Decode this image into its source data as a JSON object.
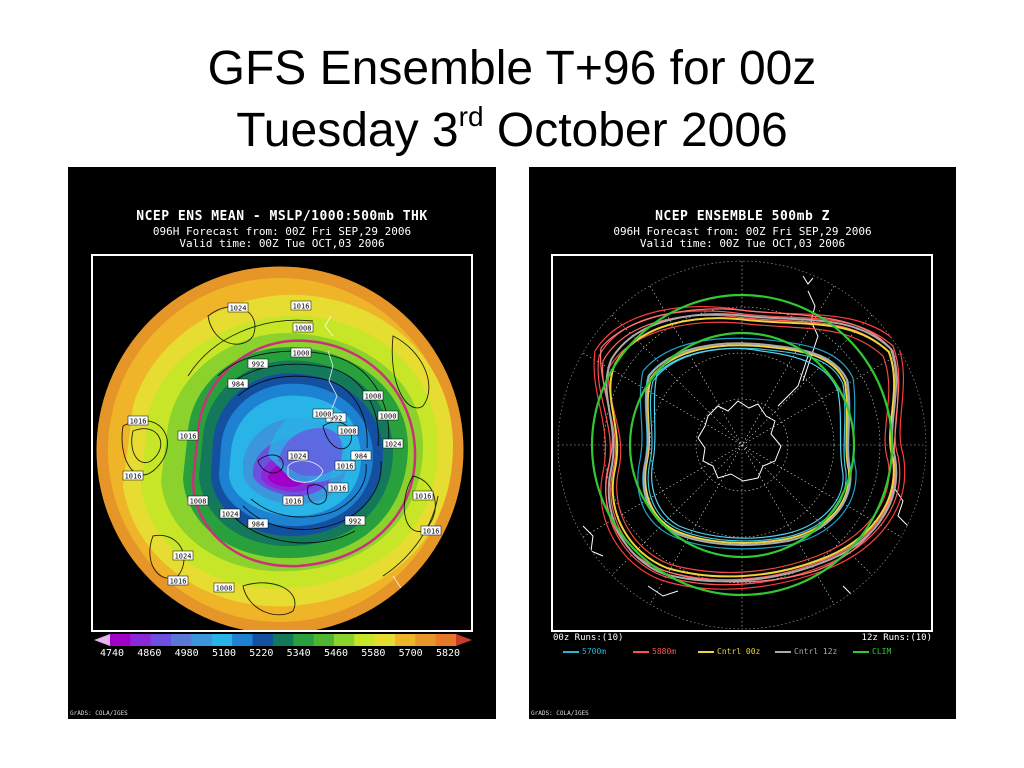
{
  "slide": {
    "title_line1": "GFS Ensemble T+96 for 00z",
    "title_line2_pre": "Tuesday 3",
    "title_line2_sup": "rd",
    "title_line2_post": " October 2006"
  },
  "left_panel": {
    "header_line1": "NCEP ENS MEAN - MSLP/1000:500mb THK",
    "header_line2": "096H Forecast from: 00Z Fri SEP,29 2006",
    "header_line3": "Valid time: 00Z Tue OCT,03 2006",
    "pressure_labels": [
      "1024",
      "1016",
      "1008",
      "1000",
      "992",
      "984",
      "1008",
      "1000",
      "992",
      "1008",
      "1016",
      "1016",
      "1024",
      "1016",
      "1008",
      "1016",
      "1024",
      "1016",
      "1024",
      "1016",
      "984",
      "1016",
      "984",
      "1000",
      "992",
      "1024",
      "1016",
      "1008",
      "1016"
    ],
    "colorbar": {
      "colors": [
        "#a000c8",
        "#8c28d8",
        "#6e50e0",
        "#5a78d8",
        "#3c96dc",
        "#28b4e6",
        "#1e82d2",
        "#1450a0",
        "#14785a",
        "#28a03c",
        "#50b432",
        "#8cd22d",
        "#c8e628",
        "#e6dc32",
        "#f0b428",
        "#e69628",
        "#e67828"
      ],
      "tick_labels": [
        "4740",
        "4860",
        "4980",
        "5100",
        "5220",
        "5340",
        "5460",
        "5580",
        "5700",
        "5820"
      ]
    },
    "credit": "GrADS: COLA/IGES"
  },
  "right_panel": {
    "header_line1": "NCEP ENSEMBLE 500mb Z",
    "header_line2": "096H Forecast from: 00Z Fri SEP,29 2006",
    "header_line3": "Valid time: 00Z Tue OCT,03 2006",
    "runs_left": "00z Runs:(10)",
    "runs_right": "12z Runs:(10)",
    "legend": [
      {
        "label": "5700m",
        "color": "#28b4d2"
      },
      {
        "label": "5880m",
        "color": "#ff5050"
      },
      {
        "label": "Cntrl 00z",
        "color": "#f0d23c"
      },
      {
        "label": "Cntrl 12z",
        "color": "#aaaaaa"
      },
      {
        "label": "CLIM",
        "color": "#32c832"
      }
    ],
    "credit": "GrADS: COLA/IGES"
  }
}
